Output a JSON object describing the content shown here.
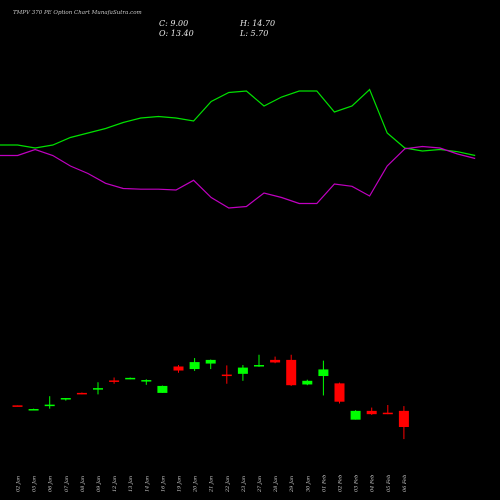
{
  "title": "TMPV 370 PE Option Chart MunafaSutra.com",
  "ohlc": {
    "c": "C: 9.00",
    "h": "H: 14.70",
    "o": "O: 13.40",
    "l": "L: 5.70"
  },
  "colors": {
    "up": "#00ff00",
    "down": "#ff0000",
    "upper_band": "#00e000",
    "lower_band": "#c000c0",
    "background": "#000000"
  },
  "chart_data": {
    "type": "candlestick",
    "title": "TMPV 370 PE Option Chart MunafaSutra.com",
    "ylim": [
      0,
      60
    ],
    "categories": [
      "02 Jan",
      "05 Jan",
      "06 Jan",
      "07 Jan",
      "08 Jan",
      "09 Jan",
      "12 Jan",
      "13 Jan",
      "14 Jan",
      "16 Jan",
      "19 Jan",
      "20 Jan",
      "21 Jan",
      "22 Jan",
      "23 Jan",
      "27 Jan",
      "28 Jan",
      "29 Jan",
      "30 Jan",
      "01 Feb",
      "02 Feb",
      "03 Feb",
      "04 Feb",
      "05 Feb",
      "06 Feb"
    ],
    "candles": [
      {
        "o": 14.9,
        "h": 14.9,
        "l": 14.7,
        "c": 14.8
      },
      {
        "o": 13.8,
        "h": 14.0,
        "l": 13.6,
        "c": 13.9
      },
      {
        "o": 14.7,
        "h": 17.4,
        "l": 14.0,
        "c": 15.1
      },
      {
        "o": 16.7,
        "h": 16.9,
        "l": 16.2,
        "c": 16.9
      },
      {
        "o": 18.3,
        "h": 18.4,
        "l": 17.9,
        "c": 18.1
      },
      {
        "o": 19.4,
        "h": 21.2,
        "l": 17.9,
        "c": 19.6
      },
      {
        "o": 21.7,
        "h": 22.5,
        "l": 20.8,
        "c": 21.6
      },
      {
        "o": 22.2,
        "h": 22.5,
        "l": 22.0,
        "c": 22.4
      },
      {
        "o": 21.5,
        "h": 22.0,
        "l": 20.5,
        "c": 21.8
      },
      {
        "o": 18.3,
        "h": 20.3,
        "l": 18.3,
        "c": 20.2
      },
      {
        "o": 25.5,
        "h": 25.9,
        "l": 23.8,
        "c": 24.4
      },
      {
        "o": 24.8,
        "h": 27.8,
        "l": 24.3,
        "c": 26.7
      },
      {
        "o": 26.3,
        "h": 27.4,
        "l": 24.8,
        "c": 27.3
      },
      {
        "o": 23.3,
        "h": 25.8,
        "l": 20.8,
        "c": 22.9
      },
      {
        "o": 23.5,
        "h": 25.9,
        "l": 21.6,
        "c": 25.2
      },
      {
        "o": 25.6,
        "h": 28.7,
        "l": 25.4,
        "c": 25.9
      },
      {
        "o": 27.3,
        "h": 28.2,
        "l": 26.4,
        "c": 26.6
      },
      {
        "o": 27.3,
        "h": 28.7,
        "l": 20.2,
        "c": 20.4
      },
      {
        "o": 20.6,
        "h": 21.9,
        "l": 20.4,
        "c": 21.6
      },
      {
        "o": 22.9,
        "h": 27.1,
        "l": 17.6,
        "c": 24.7
      },
      {
        "o": 20.9,
        "h": 21.1,
        "l": 15.4,
        "c": 15.9
      },
      {
        "o": 11.0,
        "h": 13.6,
        "l": 11.0,
        "c": 13.4
      },
      {
        "o": 13.4,
        "h": 14.3,
        "l": 12.3,
        "c": 12.5
      },
      {
        "o": 12.9,
        "h": 15.0,
        "l": 12.5,
        "c": 12.7
      },
      {
        "o": 13.4,
        "h": 14.7,
        "l": 5.7,
        "c": 9.0
      }
    ],
    "upper_band": [
      26,
      26,
      25.6,
      26,
      27,
      27.6,
      28.2,
      29,
      29.6,
      29.8,
      29.6,
      29.2,
      31.8,
      33,
      33.2,
      31.2,
      32.4,
      33.2,
      33.2,
      30.4,
      31.2,
      33.4,
      27.6,
      25.6,
      25.2,
      25.4,
      25.1,
      24.6
    ],
    "lower_band": [
      24.6,
      24.6,
      25.4,
      24.6,
      23.2,
      22.2,
      20.9,
      20.2,
      20.1,
      20.1,
      20.0,
      21.3,
      19.0,
      17.6,
      17.8,
      19.6,
      19.0,
      18.2,
      18.2,
      20.8,
      20.5,
      19.2,
      23.2,
      25.5,
      25.8,
      25.6,
      24.8,
      24.2
    ],
    "band_scale": [
      0,
      40
    ]
  }
}
